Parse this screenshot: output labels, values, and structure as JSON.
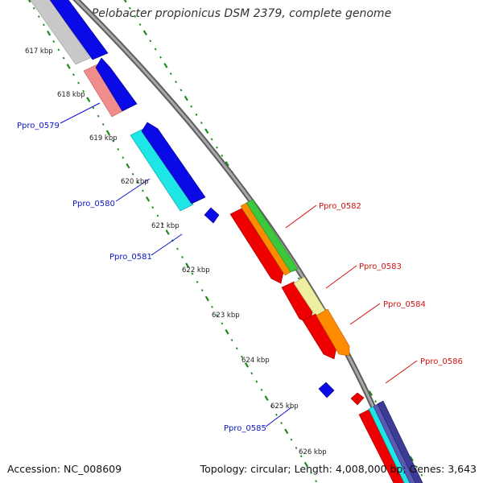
{
  "title": "Pelobacter propionicus DSM 2379, complete genome",
  "accession": "Accession: NC_008609",
  "topology": "Topology: circular; Length: 4,008,000 bp; Genes: 3,643",
  "kbp_labels": [
    "617 kbp",
    "618 kbp",
    "619 kbp",
    "620 kbp",
    "621 kbp",
    "622 kbp",
    "623 kbp",
    "624 kbp",
    "625 kbp",
    "626 kbp"
  ],
  "gene_labels": {
    "left": [
      "Ppro_0579",
      "Ppro_0580",
      "Ppro_0581",
      "Ppro_0585"
    ],
    "right": [
      "Ppro_0582",
      "Ppro_0583",
      "Ppro_0584",
      "Ppro_0586"
    ]
  },
  "colors": {
    "backbone": "#8a8a8a",
    "tick": "#1a8a1a",
    "left_label": "#0a14c8",
    "right_label": "#d21010",
    "blue": "#0a0ae6",
    "red": "#ee0000",
    "orange": "#ff8c00",
    "green": "#3cc83c",
    "yellow": "#eeeea0",
    "cyan": "#1ee6e6",
    "pink": "#f08c8c",
    "grey": "#c8c8c8",
    "navy": "#3c3c96",
    "violet": "#5a5ab4"
  }
}
